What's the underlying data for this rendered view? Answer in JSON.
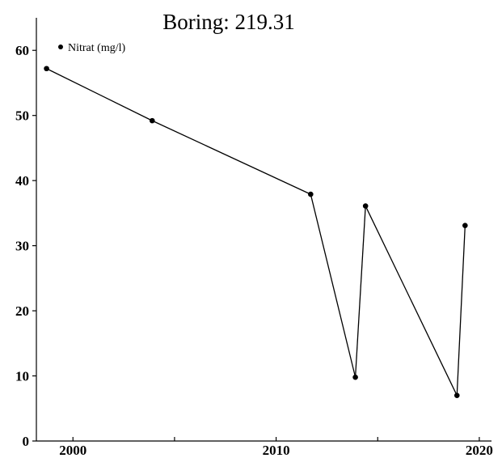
{
  "chart_data": {
    "type": "line",
    "title": "Boring: 219.31",
    "xlabel": "",
    "ylabel": "",
    "xlim": [
      1998.2,
      2020.6
    ],
    "ylim": [
      0,
      65
    ],
    "x_ticks": [
      {
        "value": 2000,
        "label": "2000"
      },
      {
        "value": 2005,
        "label": ""
      },
      {
        "value": 2010,
        "label": "2010"
      },
      {
        "value": 2015,
        "label": ""
      },
      {
        "value": 2020,
        "label": "2020"
      }
    ],
    "y_ticks": [
      {
        "value": 0,
        "label": "0"
      },
      {
        "value": 10,
        "label": "10"
      },
      {
        "value": 20,
        "label": "20"
      },
      {
        "value": 30,
        "label": "30"
      },
      {
        "value": 40,
        "label": "40"
      },
      {
        "value": 50,
        "label": "50"
      },
      {
        "value": 60,
        "label": "60"
      }
    ],
    "grid": false,
    "legend_position": "top-left",
    "series": [
      {
        "name": "Nitrat (mg/l)",
        "color": "#000000",
        "x": [
          1998.7,
          2003.9,
          2011.7,
          2013.9,
          2014.4,
          2018.9,
          2019.3
        ],
        "y": [
          57.2,
          49.2,
          37.9,
          9.8,
          36.1,
          7.0,
          33.1
        ]
      }
    ]
  }
}
